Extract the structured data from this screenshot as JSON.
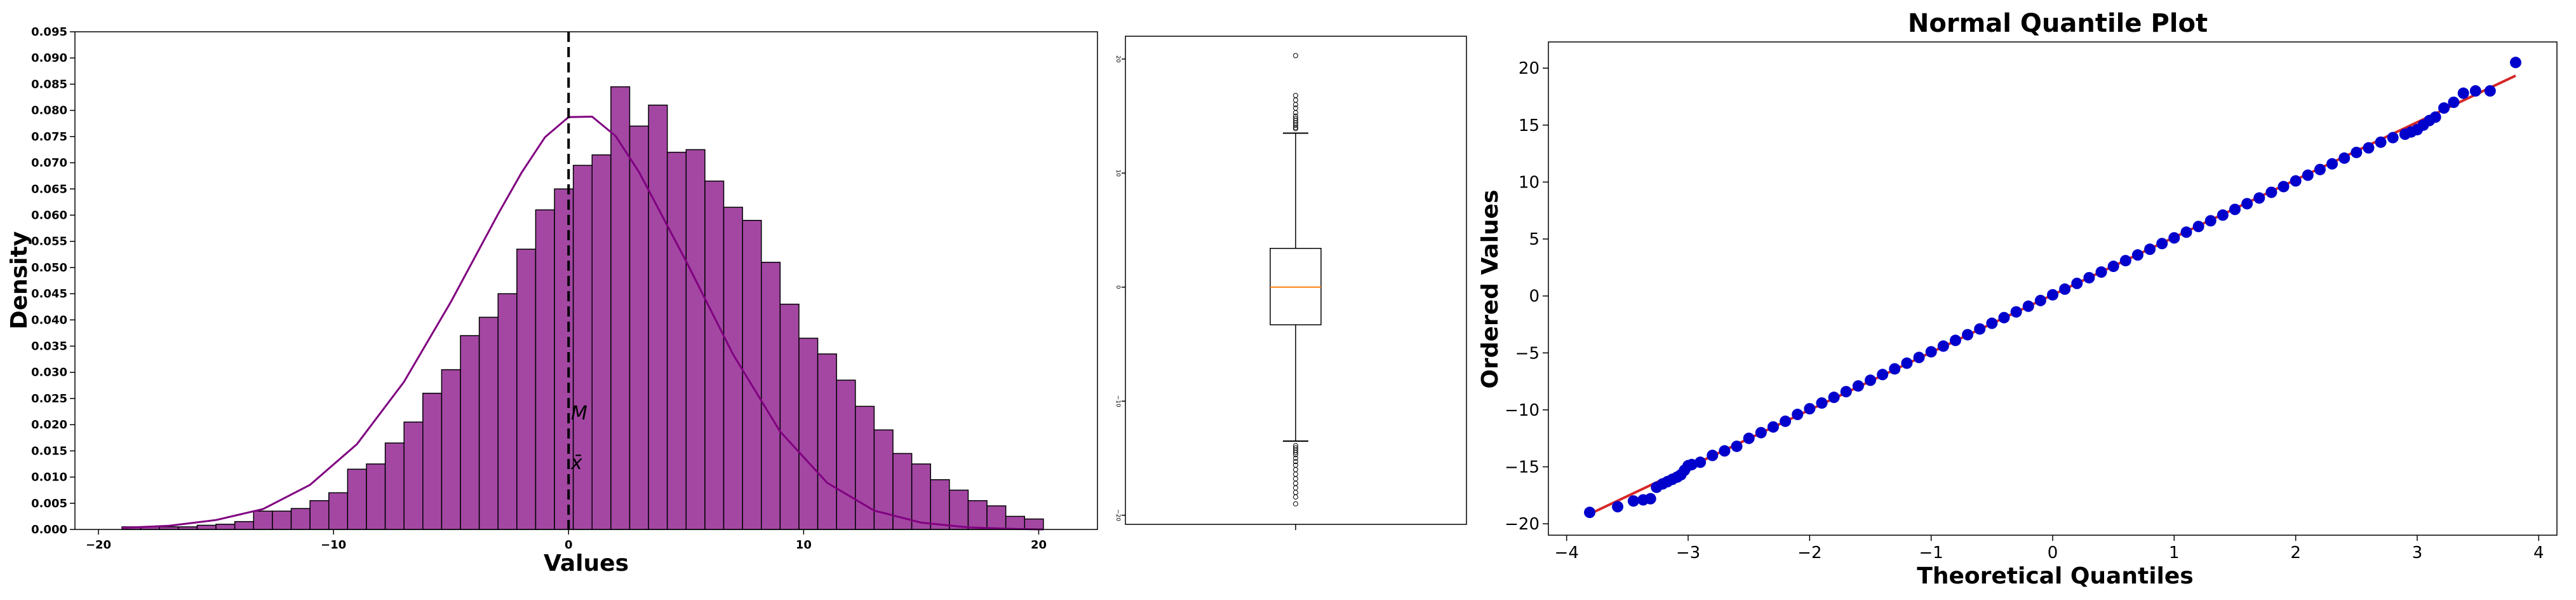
{
  "colors": {
    "hist_fill": "#a347a3",
    "kde": "#800080",
    "box_median": "#ff7f0e",
    "qq_points": "#0000cc",
    "qq_line": "#d62728"
  },
  "chart_data": [
    {
      "type": "bar",
      "xlabel": "Values",
      "ylabel": "Density",
      "xlim": [
        -21,
        22.5
      ],
      "ylim": [
        0,
        0.095
      ],
      "grid": false,
      "xticks": [
        -20,
        -10,
        0,
        10,
        20
      ],
      "xtick_labels": [
        "−20",
        "−10",
        "0",
        "10",
        "20"
      ],
      "yticks": [
        0,
        0.005,
        0.01,
        0.015,
        0.02,
        0.025,
        0.03,
        0.035,
        0.04,
        0.045,
        0.05,
        0.055,
        0.06,
        0.065,
        0.07,
        0.075,
        0.08,
        0.085,
        0.09,
        0.095
      ],
      "ytick_labels": [
        "0.000",
        "0.005",
        "0.010",
        "0.015",
        "0.020",
        "0.025",
        "0.030",
        "0.035",
        "0.040",
        "0.045",
        "0.050",
        "0.055",
        "0.060",
        "0.065",
        "0.070",
        "0.075",
        "0.080",
        "0.085",
        "0.090",
        "0.095"
      ],
      "bin_edges": [
        -19.0,
        -18.2,
        -17.4,
        -16.6,
        -15.8,
        -15.0,
        -14.2,
        -13.4,
        -12.6,
        -11.8,
        -11.0,
        -10.2,
        -9.4,
        -8.6,
        -7.8,
        -7.0,
        -6.2,
        -5.4,
        -4.6,
        -3.8,
        -3.0,
        -2.2,
        -1.4,
        -0.6,
        0.2,
        1.0,
        1.8,
        2.6,
        3.4,
        4.2,
        5.0,
        5.8,
        6.6,
        7.4,
        8.2,
        9.0,
        9.8,
        10.6,
        11.4,
        12.2,
        13.0,
        13.8,
        14.6,
        15.4,
        16.2,
        17.0,
        17.8,
        18.6,
        19.4,
        20.2
      ],
      "values": [
        0.0005,
        0.0005,
        0.0005,
        0.0005,
        0.0008,
        0.001,
        0.0015,
        0.0035,
        0.0035,
        0.004,
        0.0055,
        0.007,
        0.0115,
        0.0125,
        0.0165,
        0.0205,
        0.026,
        0.0305,
        0.037,
        0.0405,
        0.045,
        0.0535,
        0.061,
        0.065,
        0.0695,
        0.0715,
        0.0845,
        0.077,
        0.081,
        0.072,
        0.0725,
        0.0665,
        0.0615,
        0.059,
        0.051,
        0.043,
        0.0365,
        0.0335,
        0.0285,
        0.0235,
        0.019,
        0.0145,
        0.0125,
        0.0095,
        0.0075,
        0.0055,
        0.0045,
        0.0025,
        0.002,
        0.0005
      ],
      "kde": {
        "x": [
          -19,
          -17,
          -15,
          -13,
          -11,
          -9,
          -7,
          -5,
          -3,
          -2,
          -1,
          0,
          1,
          2,
          3,
          5,
          7,
          9,
          11,
          13,
          15,
          17,
          19,
          20.2
        ],
        "y": [
          0.0003,
          0.0007,
          0.0018,
          0.0039,
          0.0085,
          0.0163,
          0.0282,
          0.0435,
          0.0602,
          0.0681,
          0.0749,
          0.0787,
          0.0788,
          0.0751,
          0.0682,
          0.0512,
          0.0334,
          0.0187,
          0.0089,
          0.0036,
          0.0013,
          0.0004,
          0.0001,
          0.0
        ]
      },
      "vline_x": 0,
      "annotations": [
        {
          "text": "M",
          "x": 0.1,
          "y": 0.021
        },
        {
          "text": "x̄",
          "x": 0.1,
          "y": 0.0115
        }
      ]
    },
    {
      "type": "box",
      "ylim": [
        -20.8,
        22
      ],
      "yticks": [
        -20,
        -10,
        0,
        10,
        20
      ],
      "ytick_labels": [
        "−20",
        "−10",
        "0",
        "10",
        "20"
      ],
      "stats": {
        "q1": -3.3,
        "median": 0.0,
        "q3": 3.4,
        "whisker_low": -13.5,
        "whisker_high": 13.5
      },
      "fliers": [
        20.3,
        16.8,
        16.4,
        16.0,
        15.7,
        15.3,
        15.0,
        14.8,
        14.6,
        14.4,
        14.2,
        14.0,
        13.9,
        -13.9,
        -14.1,
        -14.3,
        -14.5,
        -14.7,
        -15.0,
        -15.3,
        -15.6,
        -16.0,
        -16.4,
        -16.8,
        -17.2,
        -17.6,
        -18.0,
        -18.4,
        -19.0
      ]
    },
    {
      "type": "scatter",
      "title": "Normal Quantile Plot",
      "xlabel": "Theoretical Quantiles",
      "ylabel": "Ordered Values",
      "xlim": [
        -4.15,
        4.15
      ],
      "ylim": [
        -21.0,
        22.3
      ],
      "xticks": [
        -4,
        -3,
        -2,
        -1,
        0,
        1,
        2,
        3,
        4
      ],
      "xtick_labels": [
        "−4",
        "−3",
        "−2",
        "−1",
        "0",
        "1",
        "2",
        "3",
        "4"
      ],
      "yticks": [
        -20,
        -15,
        -10,
        -5,
        0,
        5,
        10,
        15,
        20
      ],
      "ytick_labels": [
        "−20",
        "−15",
        "−10",
        "−5",
        "0",
        "5",
        "10",
        "15",
        "20"
      ],
      "fit_line": {
        "slope": 5.05,
        "intercept": 0.1
      },
      "points": {
        "x": [
          -3.81,
          -3.58,
          -3.45,
          -3.37,
          -3.31,
          -3.26,
          -3.21,
          -3.17,
          -3.13,
          -3.09,
          -3.06,
          -3.03,
          -3.0,
          -2.97,
          -2.9,
          -2.8,
          -2.7,
          -2.6,
          -2.5,
          -2.4,
          -2.3,
          -2.2,
          -2.1,
          -2.0,
          -1.9,
          -1.8,
          -1.7,
          -1.6,
          -1.5,
          -1.4,
          -1.3,
          -1.2,
          -1.1,
          -1.0,
          -0.9,
          -0.8,
          -0.7,
          -0.6,
          -0.5,
          -0.4,
          -0.3,
          -0.2,
          -0.1,
          0.0,
          0.1,
          0.2,
          0.3,
          0.4,
          0.5,
          0.6,
          0.7,
          0.8,
          0.9,
          1.0,
          1.1,
          1.2,
          1.3,
          1.4,
          1.5,
          1.6,
          1.7,
          1.8,
          1.9,
          2.0,
          2.1,
          2.2,
          2.3,
          2.4,
          2.5,
          2.6,
          2.7,
          2.8,
          2.9,
          2.95,
          3.0,
          3.05,
          3.1,
          3.15,
          3.22,
          3.3,
          3.38,
          3.48,
          3.6,
          3.81
        ],
        "y": [
          -19.0,
          -18.5,
          -18.0,
          -17.9,
          -17.8,
          -16.8,
          -16.5,
          -16.3,
          -16.1,
          -15.9,
          -15.7,
          -15.3,
          -14.9,
          -14.8,
          -14.6,
          -14.0,
          -13.6,
          -13.2,
          -12.5,
          -12.0,
          -11.5,
          -11.0,
          -10.4,
          -9.9,
          -9.4,
          -8.9,
          -8.4,
          -7.9,
          -7.4,
          -6.9,
          -6.4,
          -5.9,
          -5.4,
          -4.9,
          -4.4,
          -3.9,
          -3.4,
          -2.9,
          -2.4,
          -1.9,
          -1.4,
          -0.9,
          -0.4,
          0.1,
          0.6,
          1.1,
          1.6,
          2.1,
          2.6,
          3.1,
          3.6,
          4.1,
          4.6,
          5.1,
          5.6,
          6.1,
          6.6,
          7.1,
          7.6,
          8.1,
          8.6,
          9.1,
          9.6,
          10.1,
          10.6,
          11.1,
          11.6,
          12.1,
          12.6,
          13.0,
          13.5,
          13.9,
          14.2,
          14.4,
          14.6,
          15.0,
          15.4,
          15.7,
          16.5,
          17.0,
          17.8,
          18.0,
          18.0,
          20.5
        ]
      }
    }
  ]
}
